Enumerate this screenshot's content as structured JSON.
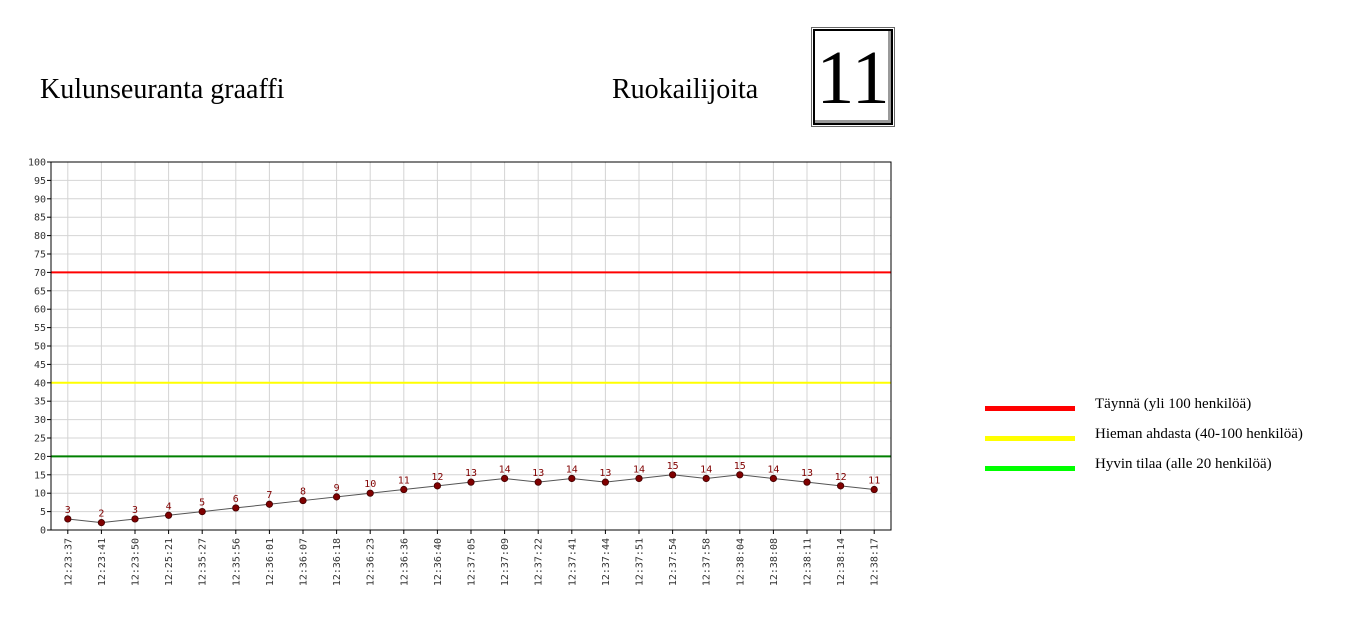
{
  "header": {
    "title": "Kulunseuranta graaffi",
    "counter_label": "Ruokailijoita",
    "counter_value": "11"
  },
  "legend": {
    "items": [
      {
        "label": "Täynnä (yli 100 henkilöä)",
        "color": "#ff0000"
      },
      {
        "label": "Hieman ahdasta (40-100 henkilöä)",
        "color": "#ffff00"
      },
      {
        "label": "Hyvin tilaa (alle 20 henkilöä)",
        "color": "#00ff00"
      }
    ]
  },
  "chart_data": {
    "type": "line",
    "title": "",
    "xlabel": "",
    "ylabel": "",
    "ylim": [
      0,
      100
    ],
    "y_ticks": [
      0,
      5,
      10,
      15,
      20,
      25,
      30,
      35,
      40,
      45,
      50,
      55,
      60,
      65,
      70,
      75,
      80,
      85,
      90,
      95,
      100
    ],
    "grid": true,
    "categories": [
      "12:23:37",
      "12:23:41",
      "12:23:50",
      "12:25:21",
      "12:35:27",
      "12:35:56",
      "12:36:01",
      "12:36:07",
      "12:36:18",
      "12:36:23",
      "12:36:36",
      "12:36:40",
      "12:37:05",
      "12:37:09",
      "12:37:22",
      "12:37:41",
      "12:37:44",
      "12:37:51",
      "12:37:54",
      "12:37:58",
      "12:38:04",
      "12:38:08",
      "12:38:11",
      "12:38:14",
      "12:38:17"
    ],
    "values": [
      3,
      2,
      3,
      4,
      5,
      6,
      7,
      8,
      9,
      10,
      11,
      12,
      13,
      14,
      13,
      14,
      13,
      14,
      15,
      14,
      15,
      14,
      13,
      12,
      11
    ],
    "line_color": "#555555",
    "marker_color": "#800000",
    "thresholds": [
      {
        "value": 70,
        "color": "#ff0000"
      },
      {
        "value": 40,
        "color": "#ffff00"
      },
      {
        "value": 20,
        "color": "#008000"
      }
    ]
  }
}
